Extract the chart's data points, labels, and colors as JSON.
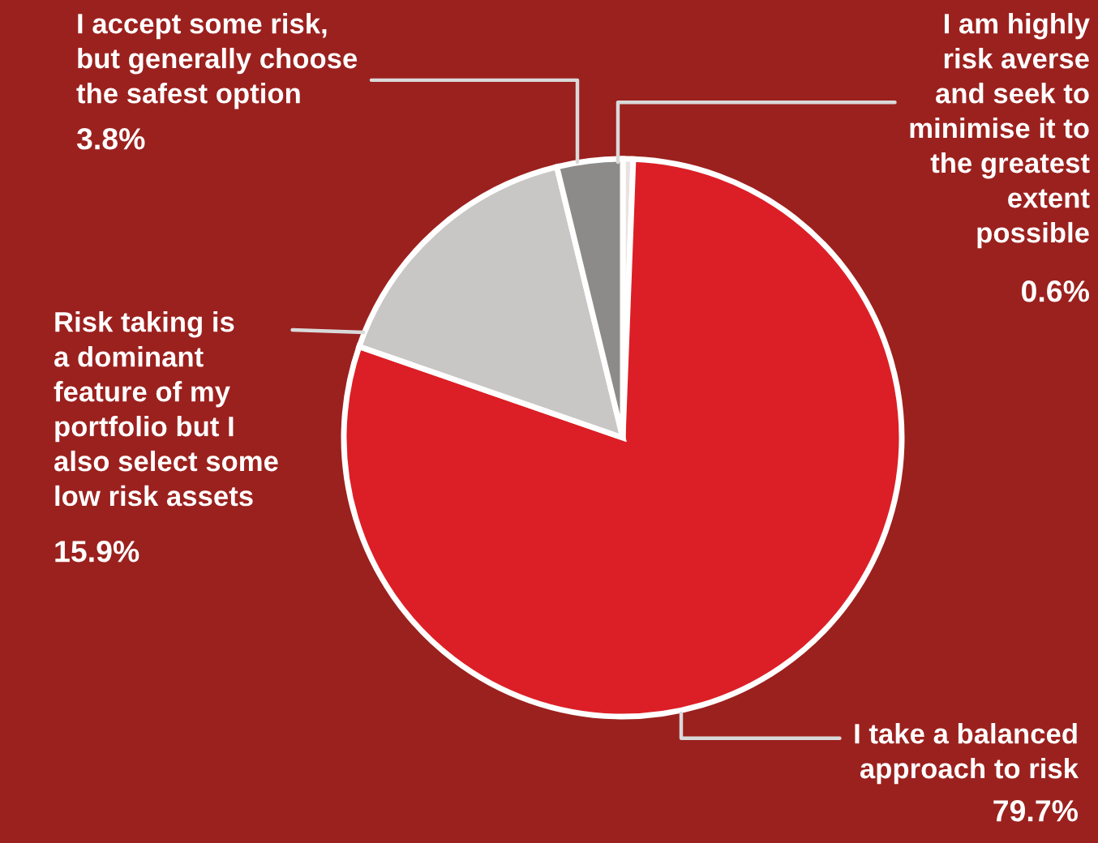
{
  "chart_data": {
    "type": "pie",
    "categories": [
      "I am highly\nrisk averse\nand seek to\nminimise it to\nthe greatest\nextent\npossible",
      "I take a balanced\napproach to risk",
      "Risk taking is\na dominant\nfeature of my\nportfolio but I\nalso select some\nlow risk assets",
      "I accept some risk,\nbut generally choose\nthe safest option"
    ],
    "values": [
      0.6,
      79.7,
      15.9,
      3.8
    ],
    "colors": [
      "#e9e2e0",
      "#dc1f26",
      "#c9c7c5",
      "#8d8b89"
    ],
    "value_labels": [
      "0.6%",
      "79.7%",
      "15.9%",
      "3.8%"
    ]
  }
}
